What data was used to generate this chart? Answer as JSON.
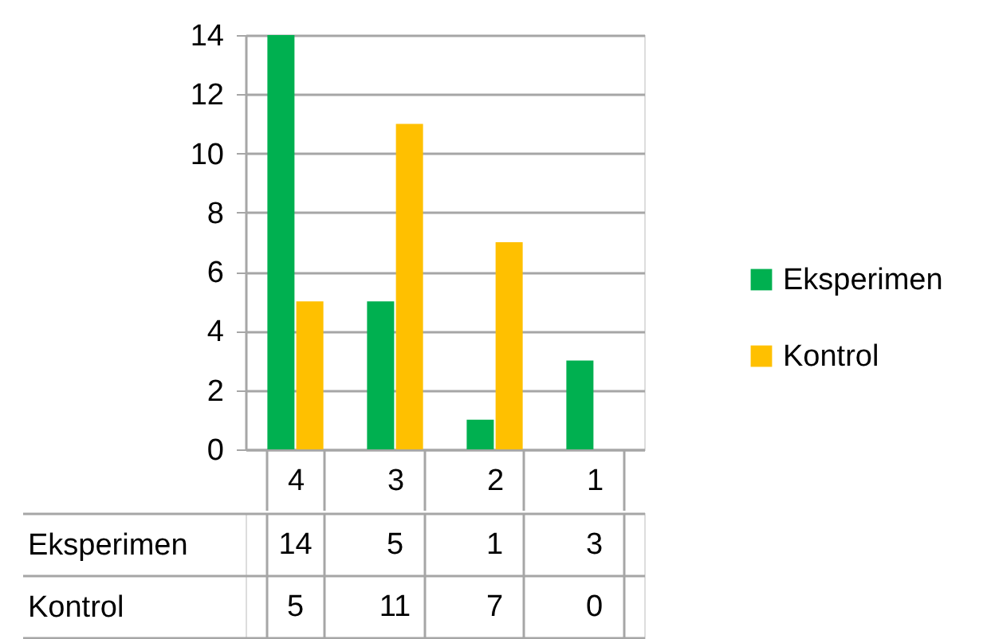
{
  "chart_data": {
    "type": "bar",
    "categories": [
      "4",
      "3",
      "2",
      "1"
    ],
    "series": [
      {
        "name": "Eksperimen",
        "color": "#00b050",
        "values": [
          14,
          5,
          1,
          3
        ]
      },
      {
        "name": "Kontrol",
        "color": "#ffc000",
        "values": [
          5,
          11,
          7,
          0
        ]
      }
    ],
    "ylim": [
      0,
      14
    ],
    "yticks": [
      0,
      2,
      4,
      6,
      8,
      10,
      12,
      14
    ],
    "grid": "y",
    "legend": "right",
    "data_labels": true
  }
}
